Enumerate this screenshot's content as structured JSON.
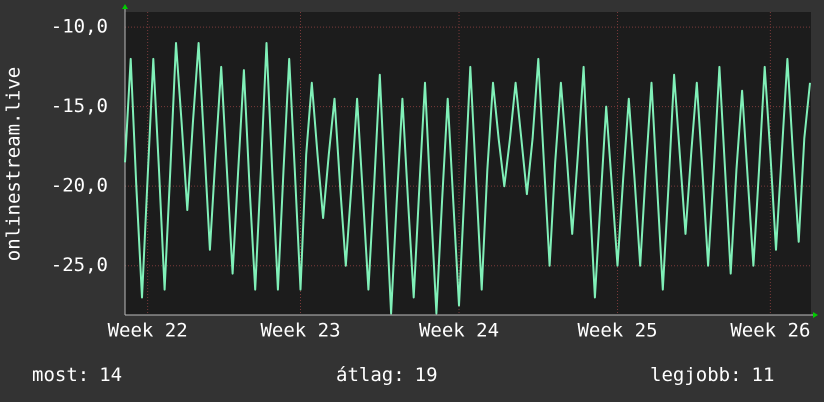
{
  "chart_data": {
    "type": "line",
    "y_label": "onlinestream.live",
    "categories": [
      null,
      null,
      null,
      null,
      "Week 22",
      null,
      null,
      null,
      null,
      null,
      null,
      null,
      null,
      null,
      null,
      null,
      null,
      null,
      null,
      null,
      null,
      null,
      null,
      null,
      null,
      null,
      null,
      null,
      null,
      null,
      null,
      "Week 23",
      null,
      null,
      null,
      null,
      null,
      null,
      null,
      null,
      null,
      null,
      null,
      null,
      null,
      null,
      null,
      null,
      null,
      null,
      null,
      null,
      null,
      null,
      null,
      null,
      null,
      null,
      null,
      "Week 24",
      null,
      null,
      null,
      null,
      null,
      null,
      null,
      null,
      null,
      null,
      null,
      null,
      null,
      null,
      null,
      null,
      null,
      null,
      null,
      null,
      null,
      null,
      null,
      null,
      null,
      null,
      null,
      "Week 25",
      null,
      null,
      null,
      null,
      null,
      null,
      null,
      null,
      null,
      null,
      null,
      null,
      null,
      null,
      null,
      null,
      null,
      null,
      null,
      null,
      null,
      null,
      null,
      null,
      null,
      null,
      "Week 26",
      null,
      null,
      null,
      null,
      null,
      null,
      null
    ],
    "series": [
      {
        "name": "onlinestream.live",
        "color": "#80f0b8",
        "values": [
          -18.5,
          -12,
          -20,
          -27,
          -19.5,
          -12,
          -19,
          -26.5,
          -19,
          -11,
          -16,
          -21.5,
          -16,
          -11,
          -17.5,
          -24,
          -18,
          -12.5,
          -19,
          -25.5,
          -19,
          -12.7,
          -20,
          -26.5,
          -19,
          -11,
          -19,
          -26.5,
          -19,
          -12,
          -19,
          -26.5,
          -18,
          -13.5,
          -18,
          -22,
          -18,
          -14.5,
          -20,
          -25,
          -20,
          -14.5,
          -20.5,
          -26.5,
          -20,
          -13,
          -20.5,
          -28,
          -21,
          -14.5,
          -21,
          -27,
          -20,
          -13.5,
          -21,
          -28,
          -21,
          -14.5,
          -21,
          -27.5,
          -20,
          -12.5,
          -19.5,
          -26.5,
          -19,
          -13.5,
          -17,
          -20,
          -17,
          -13.5,
          -17,
          -20.5,
          -17,
          -12,
          -18.5,
          -25,
          -18.5,
          -13.5,
          -18,
          -23,
          -18,
          -12.5,
          -20,
          -27,
          -21,
          -15,
          -20,
          -25,
          -19.5,
          -14.5,
          -19.5,
          -25,
          -19,
          -13.5,
          -20,
          -26.5,
          -20,
          -13,
          -18,
          -23,
          -18,
          -13.5,
          -19,
          -25,
          -19,
          -12.5,
          -19,
          -25.5,
          -19,
          -14,
          -19.5,
          -25,
          -19,
          -12.5,
          -18,
          -24,
          -18,
          -12,
          -18,
          -23.5,
          -17,
          -13.5
        ]
      }
    ],
    "ylim": [
      -28.1,
      -9.05
    ],
    "yticks": [
      {
        "value": -25,
        "label": "-25,0"
      },
      {
        "value": -20,
        "label": "-20,0"
      },
      {
        "value": -15,
        "label": "-15,0"
      },
      {
        "value": -10,
        "label": "-10,0"
      }
    ],
    "grid": true,
    "stats": [
      {
        "label": "most:",
        "value": 14
      },
      {
        "label": "átlag:",
        "value": 19
      },
      {
        "label": "legjobb:",
        "value": 11
      }
    ]
  }
}
